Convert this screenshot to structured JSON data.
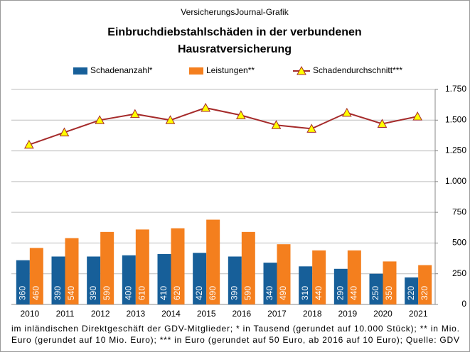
{
  "chart_data": {
    "type": "bar",
    "source": "VersicherungsJournal-Grafik",
    "title": [
      "Einbruchdiebstahlschäden  in der verbundenen",
      "Hausratversicherung"
    ],
    "categories": [
      "2010",
      "2011",
      "2012",
      "2013",
      "2014",
      "2015",
      "2016",
      "2017",
      "2018",
      "2019",
      "2020",
      "2021"
    ],
    "series": [
      {
        "name": "Schadenanzahl*",
        "type": "bar",
        "color": "#175f99",
        "values": [
          360,
          390,
          390,
          400,
          410,
          420,
          390,
          340,
          310,
          290,
          250,
          220
        ]
      },
      {
        "name": "Leistungen**",
        "type": "bar",
        "color": "#f47f1e",
        "values": [
          460,
          540,
          590,
          610,
          620,
          690,
          590,
          490,
          440,
          440,
          350,
          320
        ]
      },
      {
        "name": "Schadendurchschnitt***",
        "type": "line",
        "color": "#a52a2a",
        "marker_color": "#ffff00",
        "values": [
          1300,
          1400,
          1500,
          1550,
          1500,
          1600,
          1540,
          1460,
          1430,
          1560,
          1470,
          1530
        ]
      }
    ],
    "ylim": [
      0,
      1750
    ],
    "yticks": [
      0,
      250,
      500,
      750,
      {
        "value": 1000,
        "label": "1.000"
      },
      {
        "value": 1250,
        "label": "1.250"
      },
      {
        "value": 1500,
        "label": "1.500"
      },
      {
        "value": 1750,
        "label": "1.750"
      }
    ],
    "grid": true,
    "legend": "top",
    "notes": [
      "im inländischen Direktgeschäft der GDV-Mitglieder;  * in Tausend  (gerundet  auf  10.000 Stück); ** in Mio.",
      "Euro  (gerundet  auf 10 Mio. Euro); *** in Euro (gerundet auf 50 Euro, ab 2016 auf 10 Euro);  Quelle:  GDV"
    ]
  }
}
